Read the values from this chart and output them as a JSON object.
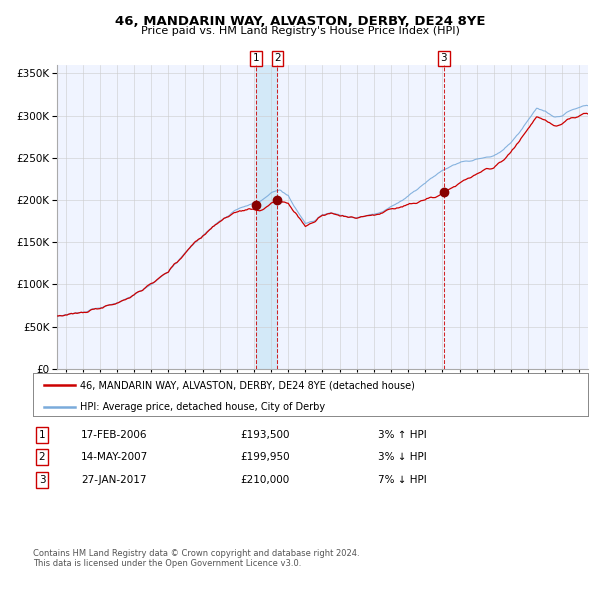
{
  "title": "46, MANDARIN WAY, ALVASTON, DERBY, DE24 8YE",
  "subtitle": "Price paid vs. HM Land Registry's House Price Index (HPI)",
  "legend_label_red": "46, MANDARIN WAY, ALVASTON, DERBY, DE24 8YE (detached house)",
  "legend_label_blue": "HPI: Average price, detached house, City of Derby",
  "footnote1": "Contains HM Land Registry data © Crown copyright and database right 2024.",
  "footnote2": "This data is licensed under the Open Government Licence v3.0.",
  "transactions": [
    {
      "num": 1,
      "date": "17-FEB-2006",
      "price": 193500,
      "pct": "3%",
      "dir": "↑"
    },
    {
      "num": 2,
      "date": "14-MAY-2007",
      "price": 199950,
      "pct": "3%",
      "dir": "↓"
    },
    {
      "num": 3,
      "date": "27-JAN-2017",
      "price": 210000,
      "pct": "7%",
      "dir": "↓"
    }
  ],
  "transaction_dates_decimal": [
    2006.12,
    2007.37,
    2017.07
  ],
  "ylim": [
    0,
    360000
  ],
  "yticks": [
    0,
    50000,
    100000,
    150000,
    200000,
    250000,
    300000,
    350000
  ],
  "xlim_start": 1994.5,
  "xlim_end": 2025.5,
  "color_red": "#cc0000",
  "color_blue": "#7aabdb",
  "color_shade": "#ddeeff",
  "background_color": "#ffffff",
  "grid_color": "#cccccc",
  "plot_bg": "#f0f4ff"
}
